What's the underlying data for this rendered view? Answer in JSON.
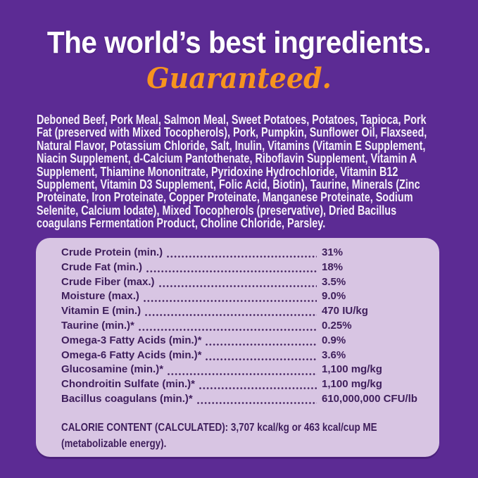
{
  "theme": {
    "background_purple": "#5C2B94",
    "panel_lavender": "#D8C5E3",
    "headline_white": "#FFFFFF",
    "accent_orange": "#F7941E",
    "text_dark_purple": "#3E1E5B"
  },
  "header": {
    "title": "The world’s best ingredients.",
    "subtitle": "Guaranteed."
  },
  "ingredients": {
    "lines": [
      "Deboned Beef, Pork Meal, Salmon Meal, Sweet Potatoes, Potatoes, Tapioca, Pork",
      "Fat (preserved with Mixed Tocopherols), Pork, Pumpkin, Sunflower Oil, Flaxseed,",
      "Natural Flavor, Potassium Chloride, Salt, Inulin, Vitamins (Vitamin E Supplement,",
      "Niacin Supplement, d-Calcium Pantothenate, Riboflavin Supplement, Vitamin A",
      "Supplement, Thiamine Mononitrate, Pyridoxine Hydrochloride, Vitamin B12",
      "Supplement, Vitamin D3 Supplement, Folic Acid, Biotin), Taurine, Minerals (Zinc",
      "Proteinate, Iron Proteinate, Copper Proteinate, Manganese Proteinate, Sodium",
      "Selenite, Calcium Iodate), Mixed Tocopherols (preservative), Dried Bacillus",
      "coagulans Fermentation Product, Choline Chloride, Parsley."
    ]
  },
  "analysis": {
    "rows": [
      {
        "label": "Crude Protein (min.)",
        "value": "31%"
      },
      {
        "label": "Crude Fat (min.)",
        "value": "18%"
      },
      {
        "label": "Crude Fiber (max.)",
        "value": "3.5%"
      },
      {
        "label": "Moisture (max.)",
        "value": "9.0%"
      },
      {
        "label": "Vitamin E (min.)",
        "value": "470 IU/kg"
      },
      {
        "label": "Taurine (min.)*",
        "value": "0.25%"
      },
      {
        "label": "Omega-3 Fatty Acids (min.)*",
        "value": "0.9%"
      },
      {
        "label": "Omega-6 Fatty Acids (min.)*",
        "value": "3.6%"
      },
      {
        "label": "Glucosamine (min.)*",
        "value": "1,100 mg/kg"
      },
      {
        "label": "Chondroitin Sulfate (min.)*",
        "value": "1,100 mg/kg"
      },
      {
        "label": "Bacillus coagulans (min.)*",
        "value": "610,000,000 CFU/lb"
      }
    ]
  },
  "calorie": {
    "lines": [
      "CALORIE CONTENT (CALCULATED): 3,707 kcal/kg or 463 kcal/cup ME",
      "(metabolizable energy)."
    ]
  }
}
